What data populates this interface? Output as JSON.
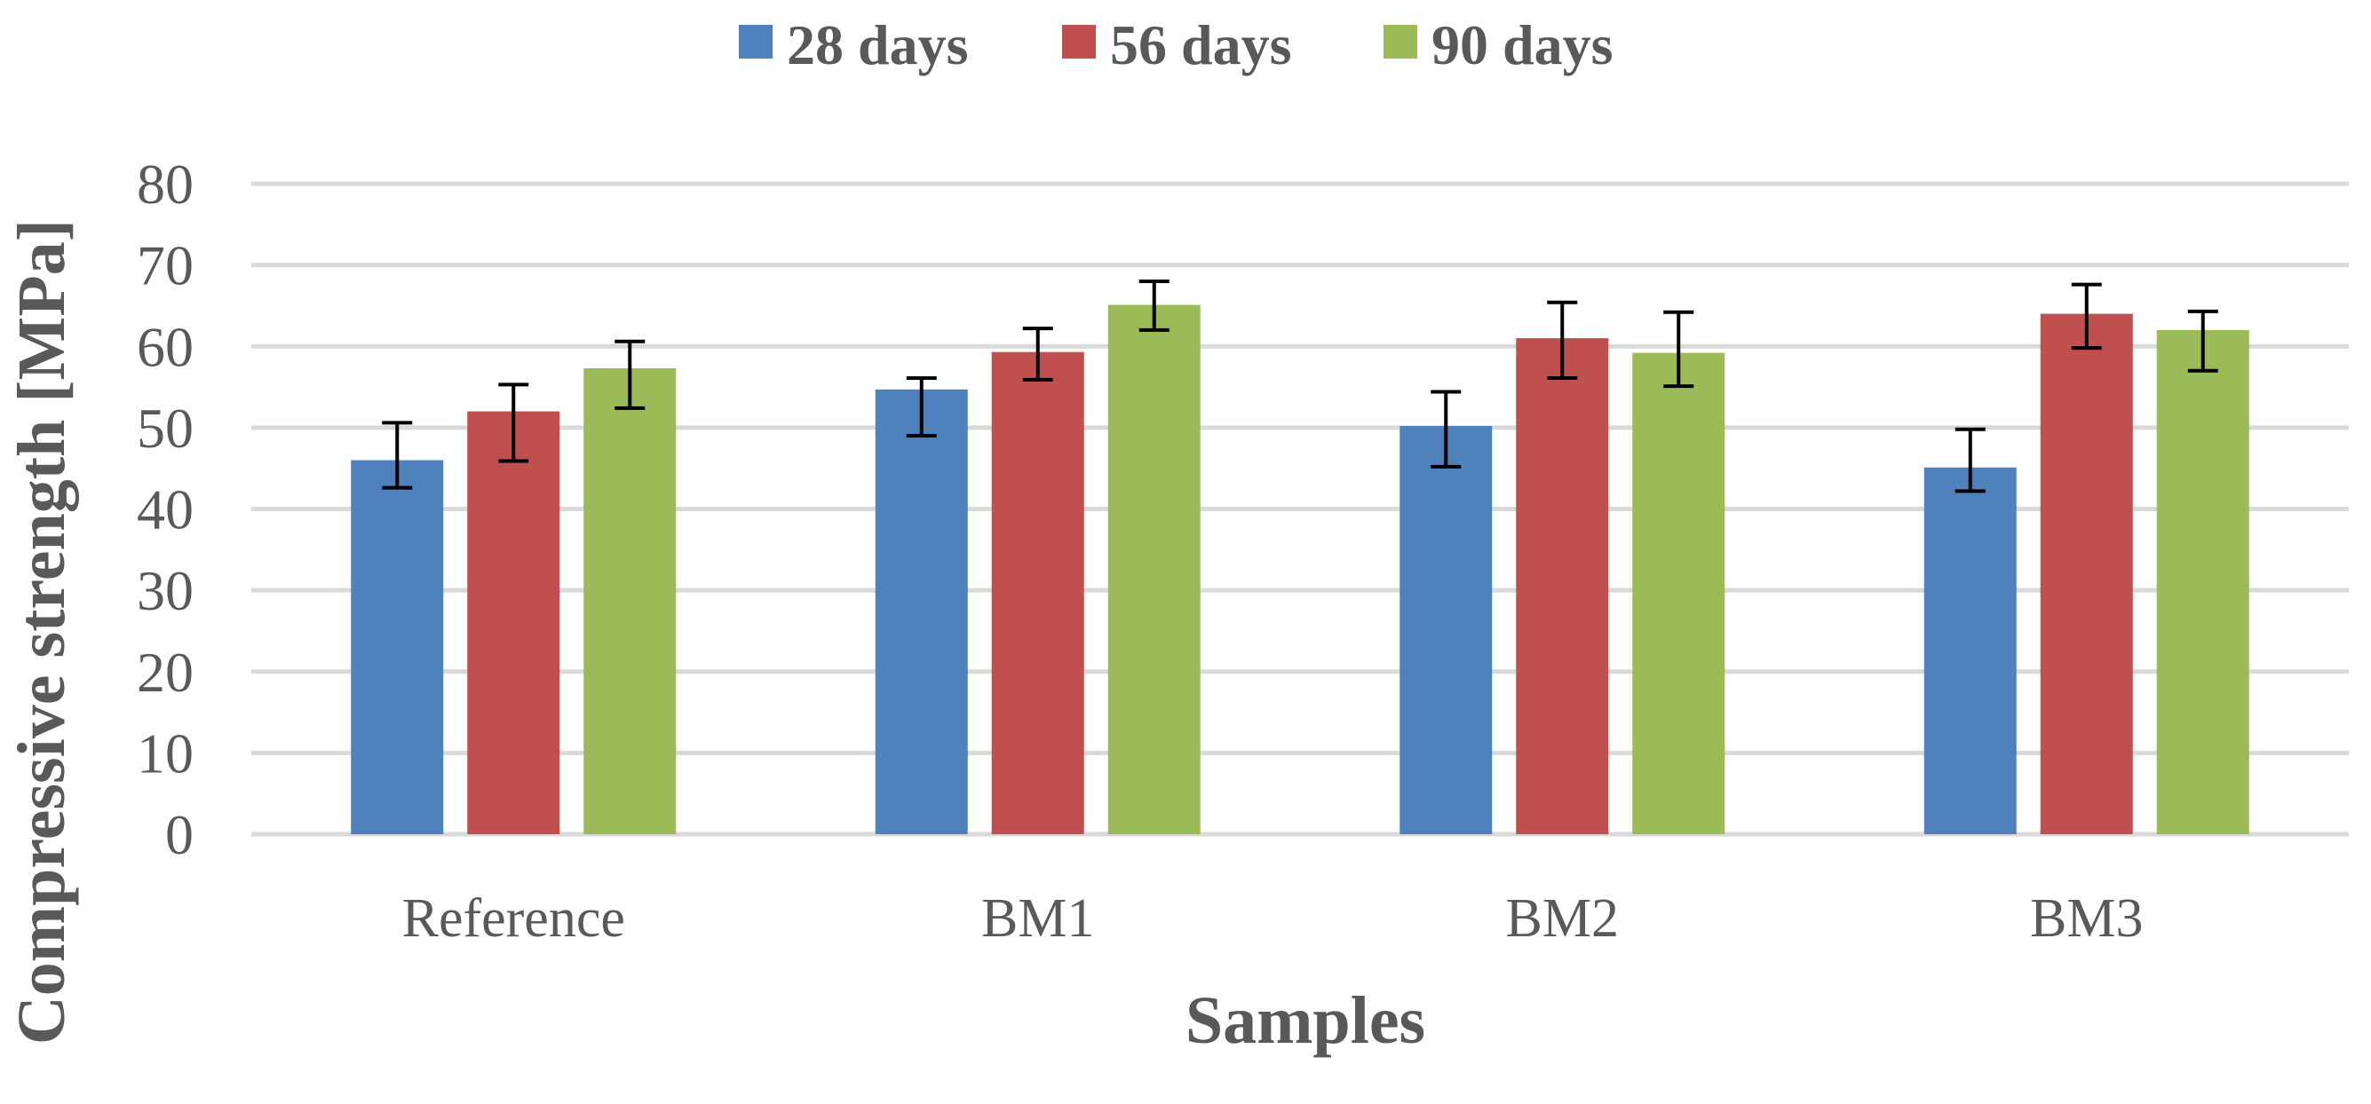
{
  "chart_data": {
    "type": "bar",
    "title": "",
    "xlabel": "Samples",
    "ylabel": "Compressive strength [MPa]",
    "ylim": [
      0,
      80
    ],
    "yticks": [
      0,
      10,
      20,
      30,
      40,
      50,
      60,
      70,
      80
    ],
    "grid": true,
    "legend_position": "top-center",
    "categories": [
      "Reference",
      "BM1",
      "BM2",
      "BM3"
    ],
    "series": [
      {
        "name": "28 days",
        "color": "#4f81bd",
        "values": [
          46,
          54.7,
          50.2,
          45.1
        ],
        "error_low": [
          42.6,
          49,
          45.2,
          42.2
        ],
        "error_high": [
          50.6,
          56.1,
          54.4,
          49.8
        ]
      },
      {
        "name": "56 days",
        "color": "#c0504d",
        "values": [
          52,
          59.3,
          61,
          64
        ],
        "error_low": [
          45.9,
          55.9,
          56.1,
          59.8
        ],
        "error_high": [
          55.3,
          62.2,
          65.4,
          67.6
        ]
      },
      {
        "name": "90 days",
        "color": "#9bbb59",
        "values": [
          57.3,
          65.1,
          59.2,
          62
        ],
        "error_low": [
          52.4,
          62,
          55.1,
          57
        ],
        "error_high": [
          60.6,
          68,
          64.2,
          64.3
        ]
      }
    ]
  }
}
